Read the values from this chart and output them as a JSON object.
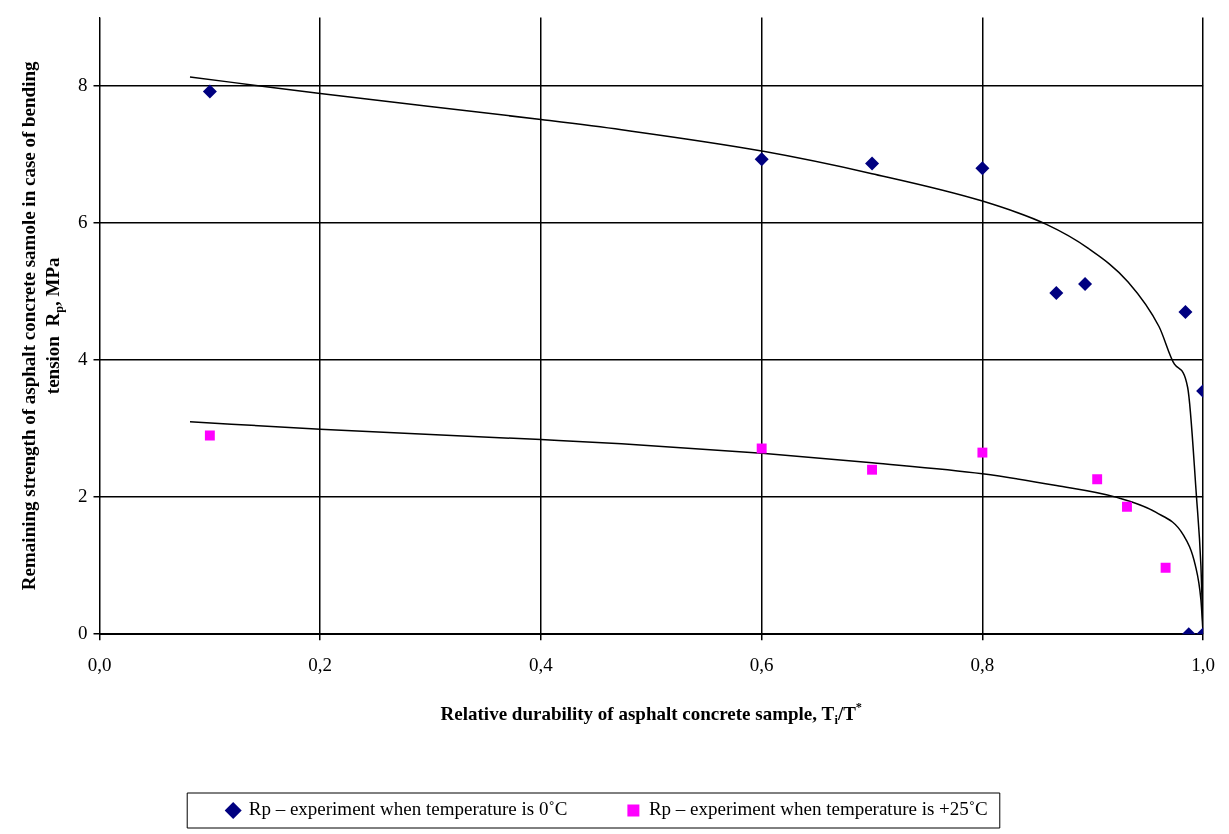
{
  "chart_data": {
    "type": "scatter",
    "xlabel": "Relative durability of asphalt concrete sample, T$_{i}$/T$^{*}$",
    "ylabel": "Remaining strength of asphalt concrete samole in case of bending tension  R$_{p}$, MPa",
    "xlim": [
      0,
      1
    ],
    "xticks": [
      {
        "value": 0,
        "label": "0,0"
      },
      {
        "value": 0.2,
        "label": "0,2"
      },
      {
        "value": 0.4,
        "label": "0,4"
      },
      {
        "value": 0.6,
        "label": "0,6"
      },
      {
        "value": 0.8,
        "label": "0,8"
      },
      {
        "value": 1,
        "label": "1,0"
      }
    ],
    "ylim": [
      0,
      9
    ],
    "yticks": [
      0,
      2,
      4,
      6,
      8
    ],
    "grid": true,
    "legend": "bottom",
    "series": [
      {
        "name": "Rp – experiment when temperature is 0˚C",
        "type": "scatter",
        "marker": "diamond",
        "color": "#000080",
        "x": [
          0.1,
          0.6,
          0.7,
          0.8,
          0.867,
          0.893,
          0.984,
          1.0,
          0.987,
          1.0
        ],
        "values": [
          7.92,
          6.93,
          6.87,
          6.8,
          4.98,
          5.11,
          4.7,
          3.55,
          0,
          0
        ]
      },
      {
        "name": "Rp – experiment when temperature is +25˚C",
        "type": "scatter",
        "marker": "square",
        "color": "#ff00ff",
        "x": [
          0.1,
          0.6,
          0.7,
          0.8,
          0.904,
          0.931,
          0.966
        ],
        "values": [
          2.9,
          2.71,
          2.4,
          2.65,
          2.26,
          1.86,
          0.97
        ]
      },
      {
        "type": "line",
        "marker": "none",
        "color": "#000000",
        "x": [
          0.082,
          0.2,
          0.4,
          0.473,
          0.6,
          0.7,
          0.8,
          0.858,
          0.896,
          0.932,
          0.96,
          0.974,
          0.986,
          0.994,
          0.998,
          1.0
        ],
        "values": [
          8.13,
          7.89,
          7.51,
          7.36,
          7.05,
          6.72,
          6.32,
          5.98,
          5.63,
          5.14,
          4.49,
          3.94,
          3.6,
          2.0,
          1.0,
          0
        ]
      },
      {
        "type": "line",
        "marker": "none",
        "color": "#000000",
        "x": [
          0.082,
          0.2,
          0.4,
          0.473,
          0.6,
          0.7,
          0.8,
          0.867,
          0.921,
          0.957,
          0.982,
          0.993,
          0.998,
          1.0
        ],
        "values": [
          3.1,
          2.99,
          2.84,
          2.78,
          2.64,
          2.5,
          2.34,
          2.17,
          2.0,
          1.78,
          1.45,
          1.0,
          0.5,
          0
        ]
      }
    ]
  }
}
